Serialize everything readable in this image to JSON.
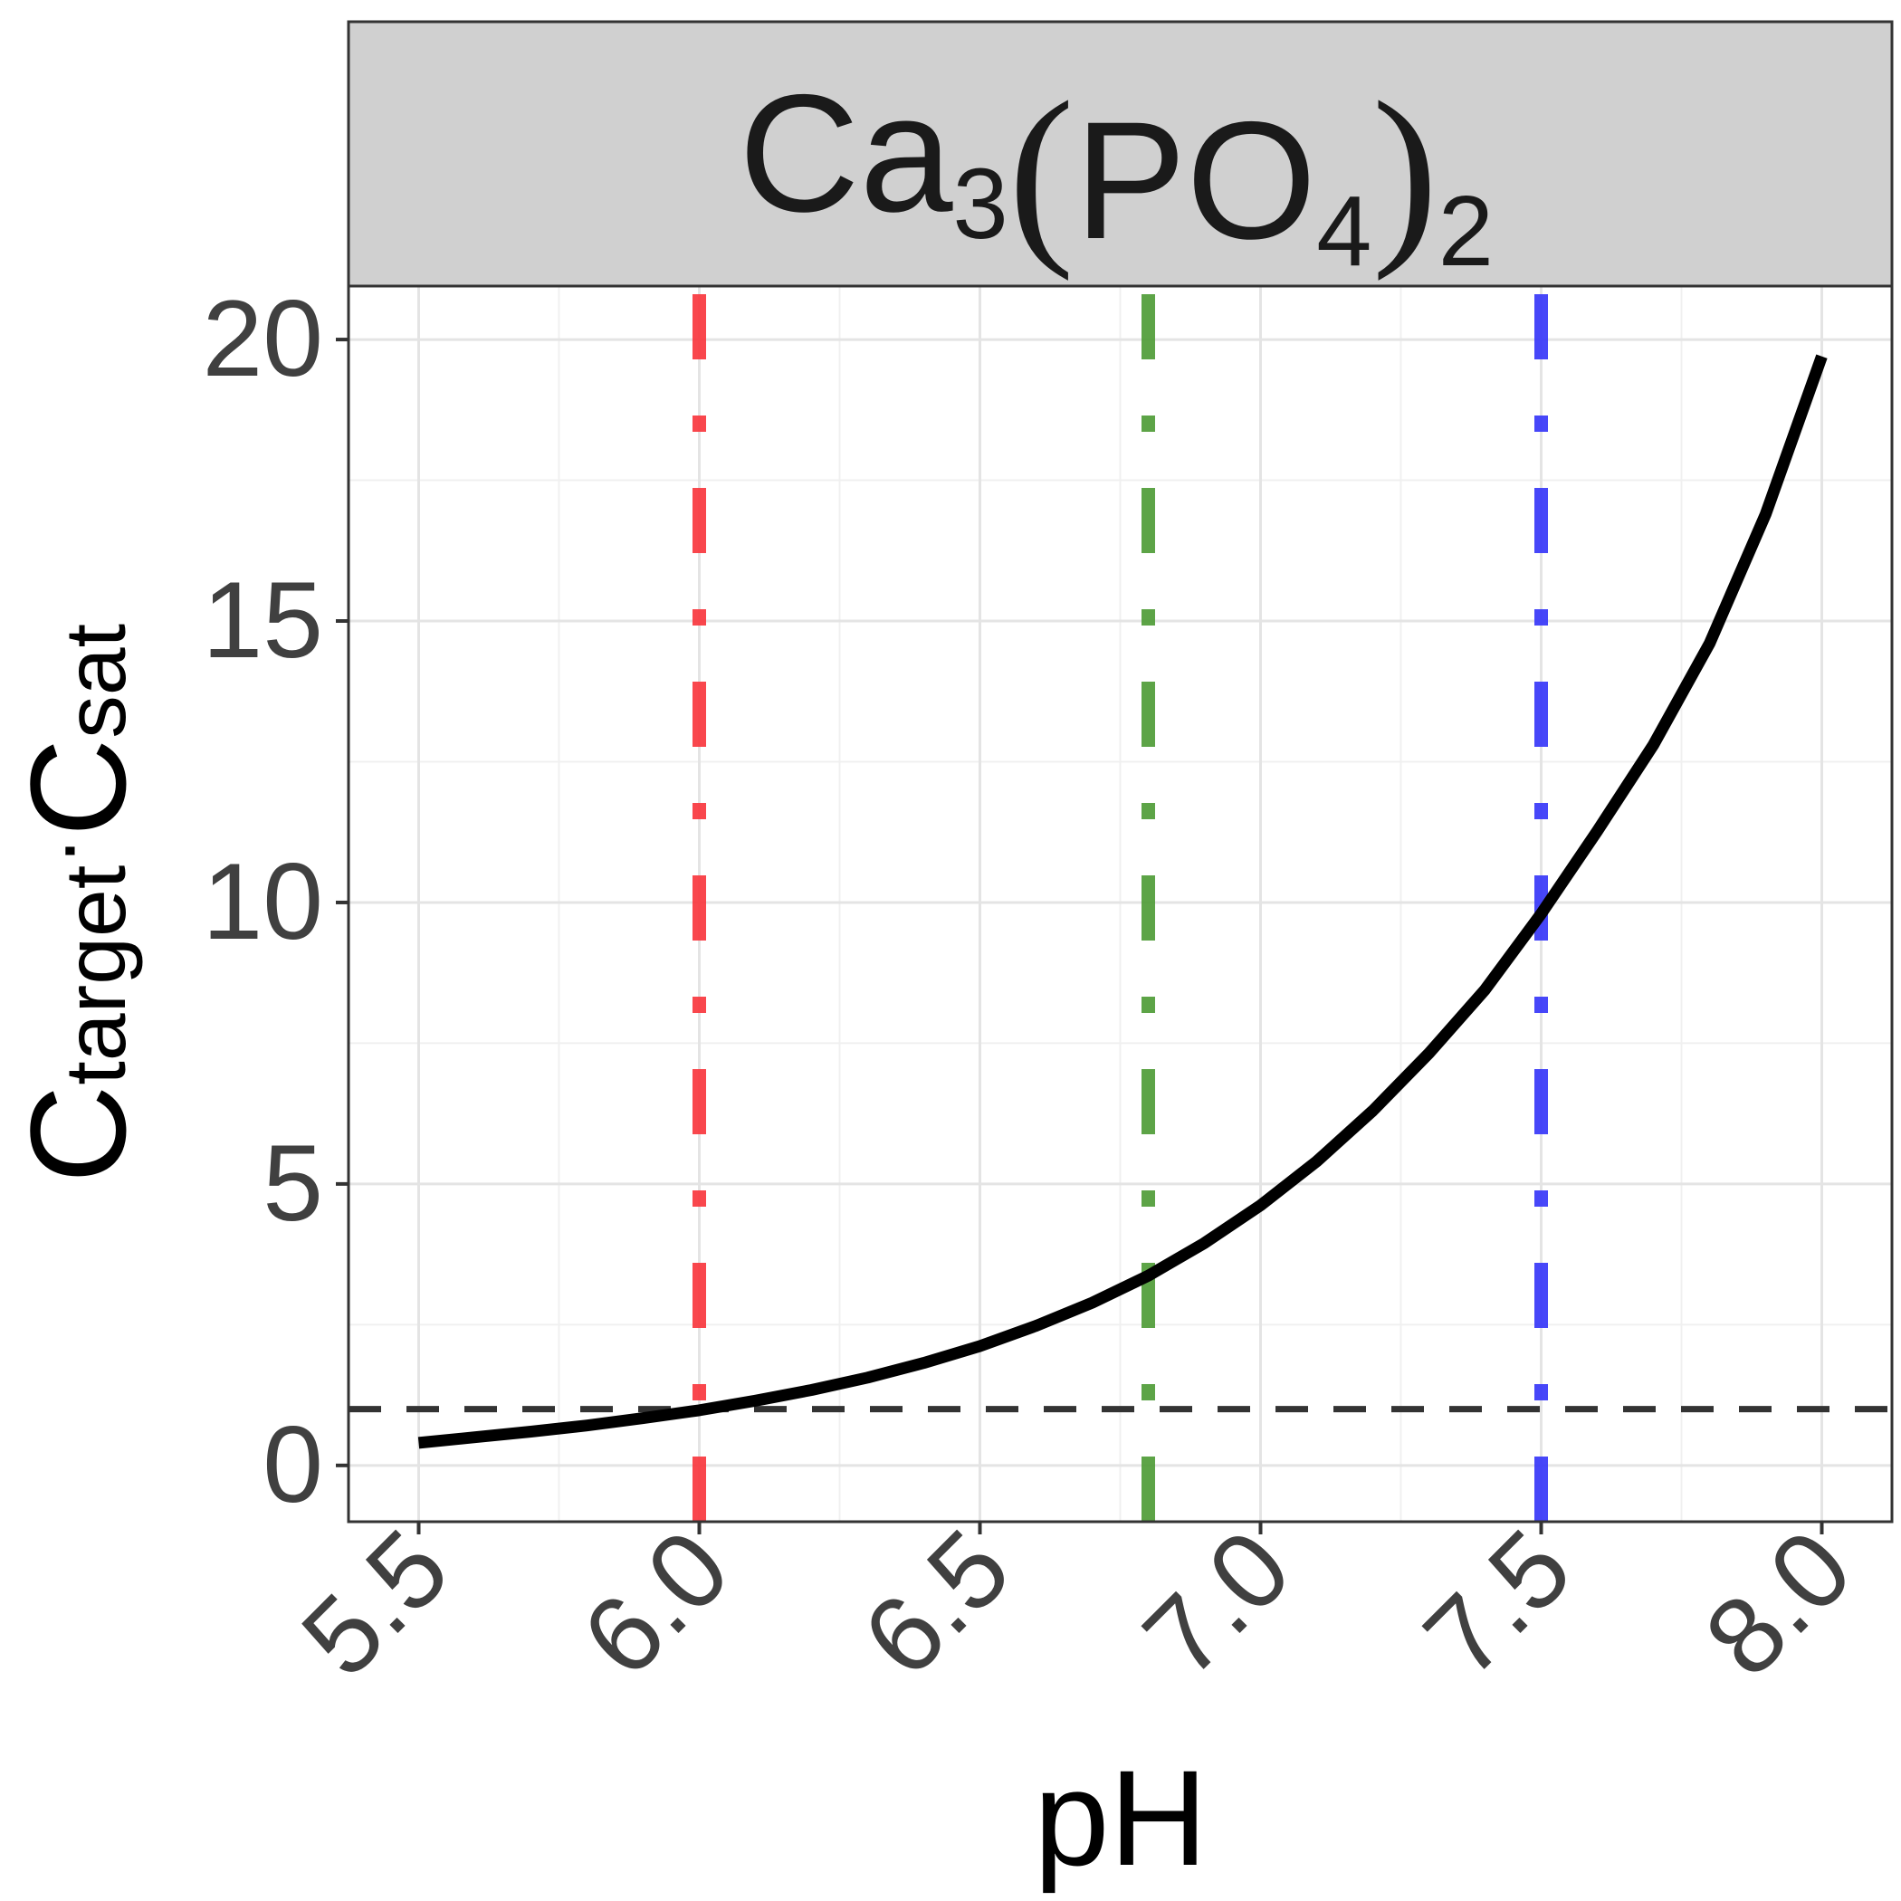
{
  "chart_data": {
    "type": "line",
    "strip_title": {
      "element": "Ca",
      "sub1": "3",
      "open_paren": "(",
      "group": "PO",
      "sub2": "4",
      "close_paren": ")",
      "sub3": "2"
    },
    "xlabel": "pH",
    "ylabel": {
      "main1": "C",
      "sub1": "target",
      "separator": "·",
      "main2": "C",
      "sub2": "sat"
    },
    "xlim": [
      5.375,
      8.125
    ],
    "ylim": [
      -1.0,
      20.95
    ],
    "x_ticks": [
      5.5,
      6.0,
      6.5,
      7.0,
      7.5,
      8.0
    ],
    "x_tick_labels": [
      "5.5",
      "6.0",
      "6.5",
      "7.0",
      "7.5",
      "8.0"
    ],
    "y_ticks": [
      0,
      5,
      10,
      15,
      20
    ],
    "y_tick_labels": [
      "0",
      "5",
      "10",
      "15",
      "20"
    ],
    "grid": true,
    "series": [
      {
        "color": "#000000",
        "x": [
          5.5,
          5.6,
          5.7,
          5.8,
          5.9,
          6.0,
          6.1,
          6.2,
          6.3,
          6.4,
          6.5,
          6.6,
          6.7,
          6.8,
          6.9,
          7.0,
          7.1,
          7.2,
          7.3,
          7.4,
          7.5,
          7.6,
          7.7,
          7.8,
          7.9,
          8.0
        ],
        "y": [
          0.4,
          0.5,
          0.6,
          0.71,
          0.84,
          0.98,
          1.15,
          1.34,
          1.56,
          1.82,
          2.12,
          2.48,
          2.89,
          3.37,
          3.95,
          4.62,
          5.4,
          6.3,
          7.32,
          8.45,
          9.8,
          11.27,
          12.8,
          14.6,
          16.9,
          19.7
        ]
      }
    ],
    "reference_lines": [
      {
        "orientation": "horizontal",
        "value": 1,
        "color": "#333333",
        "style": "dashed"
      },
      {
        "orientation": "vertical",
        "value": 6.0,
        "color": "#f8333a",
        "style": "dotdash"
      },
      {
        "orientation": "vertical",
        "value": 6.8,
        "color": "#4b9a33",
        "style": "dotdash"
      },
      {
        "orientation": "vertical",
        "value": 7.5,
        "color": "#3333f8",
        "style": "dotdash"
      }
    ],
    "colors": {
      "strip_background": "#d0d0d0",
      "grid_major": "#e4e4e4",
      "grid_minor": "#f0f0f0",
      "axis_text": "#404040",
      "title_text": "#1a1a1a"
    }
  }
}
